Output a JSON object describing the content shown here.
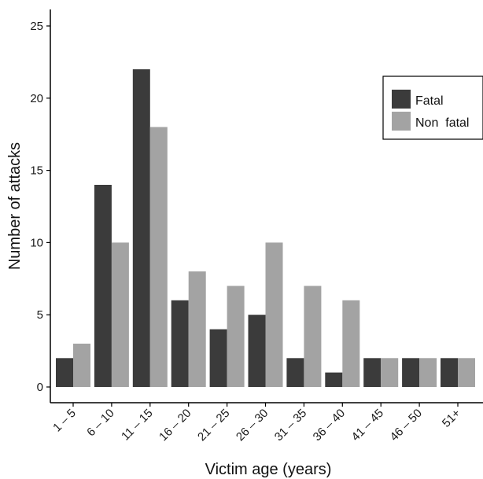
{
  "chart_data": {
    "type": "bar",
    "xlabel": "Victim age (years)",
    "ylabel": "Number of attacks",
    "categories": [
      "1 – 5",
      "6 – 10",
      "11 – 15",
      "16 – 20",
      "21 – 25",
      "26 – 30",
      "31 – 35",
      "36 – 40",
      "41 – 45",
      "46 – 50",
      "51+"
    ],
    "series": [
      {
        "name": "Fatal",
        "color": "#3b3b3b",
        "values": [
          2,
          14,
          22,
          6,
          4,
          5,
          2,
          1,
          2,
          2,
          2
        ]
      },
      {
        "name": "Non  fatal",
        "color": "#a3a3a3",
        "values": [
          3,
          10,
          18,
          8,
          7,
          10,
          7,
          6,
          2,
          2,
          2
        ]
      }
    ],
    "ylim": [
      0,
      25
    ],
    "yticks": [
      "0",
      "5",
      "10",
      "15",
      "20",
      "25"
    ],
    "grid": false,
    "legend_position": "top-right"
  }
}
